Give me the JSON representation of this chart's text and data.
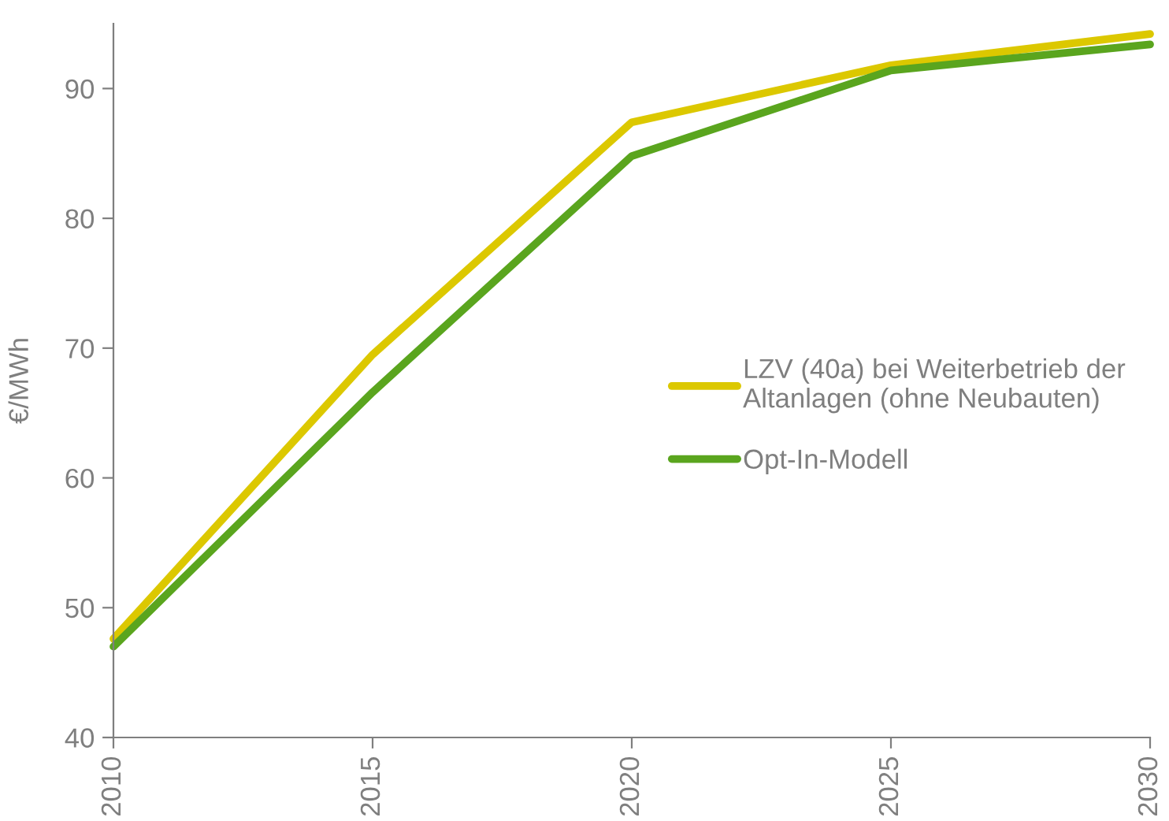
{
  "chart_data": {
    "type": "line",
    "ylabel": "€/MWh",
    "x": [
      2010,
      2015,
      2020,
      2025,
      2030
    ],
    "series": [
      {
        "name": "LZV (40a) bei Weiterbetrieb der\nAltanlagen (ohne Neubauten)",
        "color": "#dcc800",
        "values": [
          47.6,
          69.5,
          87.4,
          91.8,
          94.2
        ]
      },
      {
        "name": "Opt-In-Modell",
        "color": "#5aa51e",
        "values": [
          47.0,
          66.6,
          84.8,
          91.4,
          93.4
        ]
      }
    ],
    "xlim": [
      2010,
      2030
    ],
    "xticks": [
      2010,
      2015,
      2020,
      2025,
      2030
    ],
    "ylim": [
      40,
      95
    ],
    "yticks": [
      40,
      50,
      60,
      70,
      80,
      90
    ],
    "grid": false,
    "legend": "right",
    "marker": "none",
    "line_style": "solid"
  }
}
